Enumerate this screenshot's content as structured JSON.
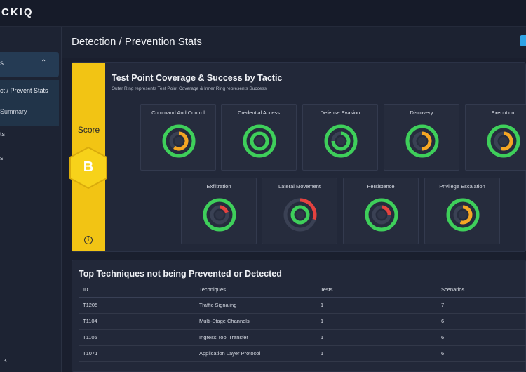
{
  "app": {
    "logo": "CKIQ"
  },
  "sidebar": {
    "group_label": "s",
    "items": [
      {
        "label": "ct / Prevent Stats",
        "active": true
      },
      {
        "label": "Summary"
      },
      {
        "label": "ts"
      },
      {
        "label": "s"
      }
    ],
    "collapse_icon": "chevron-left-icon"
  },
  "header": {
    "title": "Detection / Prevention Stats"
  },
  "score": {
    "label": "Score",
    "grade": "B",
    "color": "#f2c414"
  },
  "coverage": {
    "title": "Test Point Coverage & Success by Tactic",
    "subtitle": "Outer Ring represents Test Point Coverage & Inner Ring represents Success",
    "tactics": [
      {
        "name": "Command And Control",
        "coverage": 1.0,
        "success": 0.6,
        "success_color": "#f5a623"
      },
      {
        "name": "Credential Access",
        "coverage": 1.0,
        "success": 1.0,
        "success_color": "#3ecf5a"
      },
      {
        "name": "Defense Evasion",
        "coverage": 1.0,
        "success": 0.75,
        "success_color": "#3ecf5a"
      },
      {
        "name": "Discovery",
        "coverage": 1.0,
        "success": 0.5,
        "success_color": "#f5a623"
      },
      {
        "name": "Execution",
        "coverage": 1.0,
        "success": 0.55,
        "success_color": "#f5a623"
      },
      {
        "name": "Exfiltration",
        "coverage": 1.0,
        "success": 0.2,
        "success_color": "#e5423f"
      },
      {
        "name": "Lateral Movement",
        "coverage": 0.3,
        "success": 1.0,
        "success_color": "#3ecf5a",
        "coverage_color": "#e5423f"
      },
      {
        "name": "Persistence",
        "coverage": 1.0,
        "success": 0.25,
        "success_color": "#e5423f"
      },
      {
        "name": "Privilege Escalation",
        "coverage": 1.0,
        "success": 0.55,
        "success_color": "#f5a623"
      }
    ],
    "coverage_color": "#3ecf5a"
  },
  "techniques": {
    "title": "Top Techniques not being Prevented or Detected",
    "columns": [
      "ID",
      "Techniques",
      "Tests",
      "Scenarios"
    ],
    "rows": [
      [
        "T1205",
        "Traffic Signaling",
        "1",
        "7"
      ],
      [
        "T1104",
        "Multi-Stage Channels",
        "1",
        "6"
      ],
      [
        "T1105",
        "Ingress Tool Transfer",
        "1",
        "6"
      ],
      [
        "T1071",
        "Application Layer Protocol",
        "1",
        "6"
      ]
    ]
  }
}
